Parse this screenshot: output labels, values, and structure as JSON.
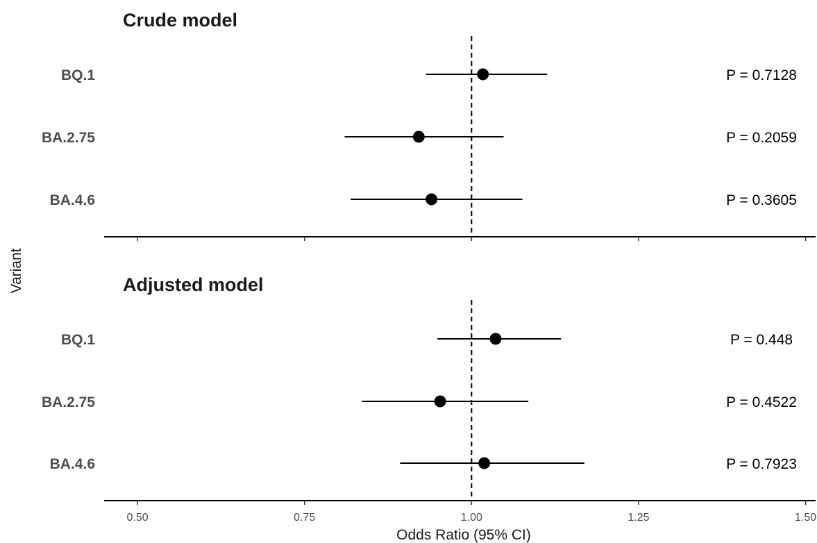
{
  "chart_data": {
    "type": "forest",
    "xlabel": "Odds Ratio (95% CI)",
    "ylabel": "Variant",
    "xlim": [
      0.45,
      1.515
    ],
    "x_ticks": [
      "0.50",
      "0.75",
      "1.00",
      "1.25",
      "1.50"
    ],
    "reference_line": 1.0,
    "grid": false,
    "panels": [
      {
        "title": "Crude model",
        "rows": [
          {
            "label": "BQ.1",
            "or": 1.017,
            "lower": 0.932,
            "upper": 1.113,
            "p": "P = 0.7128"
          },
          {
            "label": "BA.2.75",
            "or": 0.921,
            "lower": 0.81,
            "upper": 1.048,
            "p": "P = 0.2059"
          },
          {
            "label": "BA.4.6",
            "or": 0.94,
            "lower": 0.819,
            "upper": 1.076,
            "p": "P = 0.3605"
          }
        ]
      },
      {
        "title": "Adjusted model",
        "rows": [
          {
            "label": "BQ.1",
            "or": 1.036,
            "lower": 0.949,
            "upper": 1.134,
            "p": "P = 0.448"
          },
          {
            "label": "BA.2.75",
            "or": 0.953,
            "lower": 0.836,
            "upper": 1.085,
            "p": "P = 0.4522"
          },
          {
            "label": "BA.4.6",
            "or": 1.019,
            "lower": 0.893,
            "upper": 1.169,
            "p": "P = 0.7923"
          }
        ]
      }
    ]
  }
}
